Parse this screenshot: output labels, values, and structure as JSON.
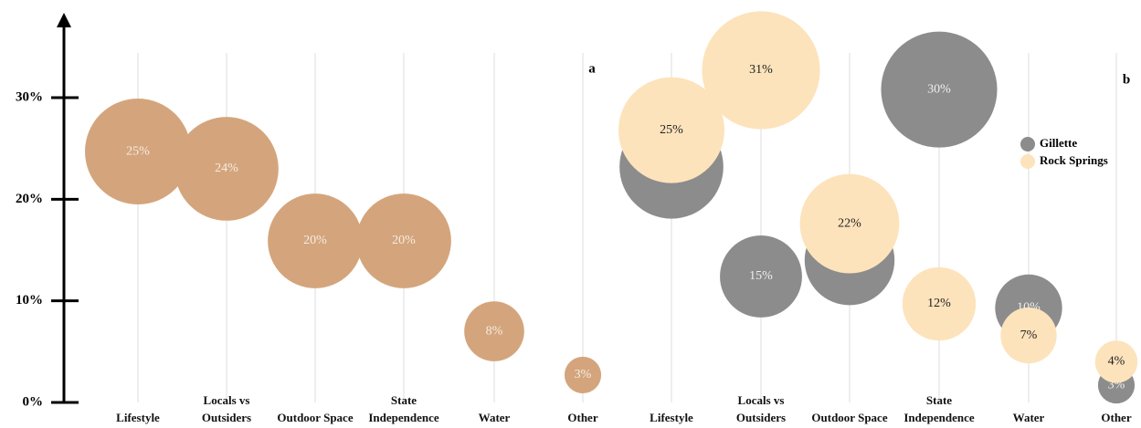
{
  "chart_data": [
    {
      "type": "bubble",
      "label": "a",
      "categories": [
        "Lifestyle",
        "Locals vs Outsiders",
        "Outdoor Space",
        "State Independence",
        "Water",
        "Other"
      ],
      "series": [
        {
          "color": "#d4a57c",
          "text_color": "#f6ece2",
          "values": [
            24.7,
            23.0,
            15.9,
            15.9,
            7.0,
            2.7
          ],
          "sizes": [
            25,
            24,
            20,
            20,
            8,
            3
          ],
          "size_labels": [
            "25%",
            "24%",
            "20%",
            "20%",
            "8%",
            "3%"
          ]
        }
      ],
      "ylim": [
        0,
        38
      ],
      "yticks": [
        {
          "value": 0,
          "label": "0%"
        },
        {
          "value": 10,
          "label": "10%"
        },
        {
          "value": 20,
          "label": "20%"
        },
        {
          "value": 30,
          "label": "30%"
        }
      ]
    },
    {
      "type": "bubble",
      "label": "b",
      "legend": "upper right",
      "categories": [
        "Lifestyle",
        "Locals vs Outsiders",
        "Outdoor Space",
        "State Independence",
        "Water",
        "Other"
      ],
      "series": [
        {
          "name": "Gillette",
          "color": "#8c8c8c",
          "text_color": "#efefef",
          "values": [
            23.2,
            12.4,
            14.0,
            30.8,
            9.3,
            1.7
          ],
          "sizes": [
            24,
            15,
            18,
            30,
            10,
            3
          ],
          "size_labels": [
            "24%",
            "15%",
            "18%",
            "30%",
            "10%",
            "3%"
          ]
        },
        {
          "name": "Rock Springs",
          "color": "#fde3bb",
          "text_color": "#222222",
          "values": [
            26.8,
            32.7,
            17.6,
            9.7,
            6.6,
            4.0
          ],
          "sizes": [
            25,
            31,
            22,
            12,
            7,
            4
          ],
          "size_labels": [
            "25%",
            "31%",
            "22%",
            "12%",
            "7%",
            "4%"
          ]
        }
      ]
    }
  ]
}
